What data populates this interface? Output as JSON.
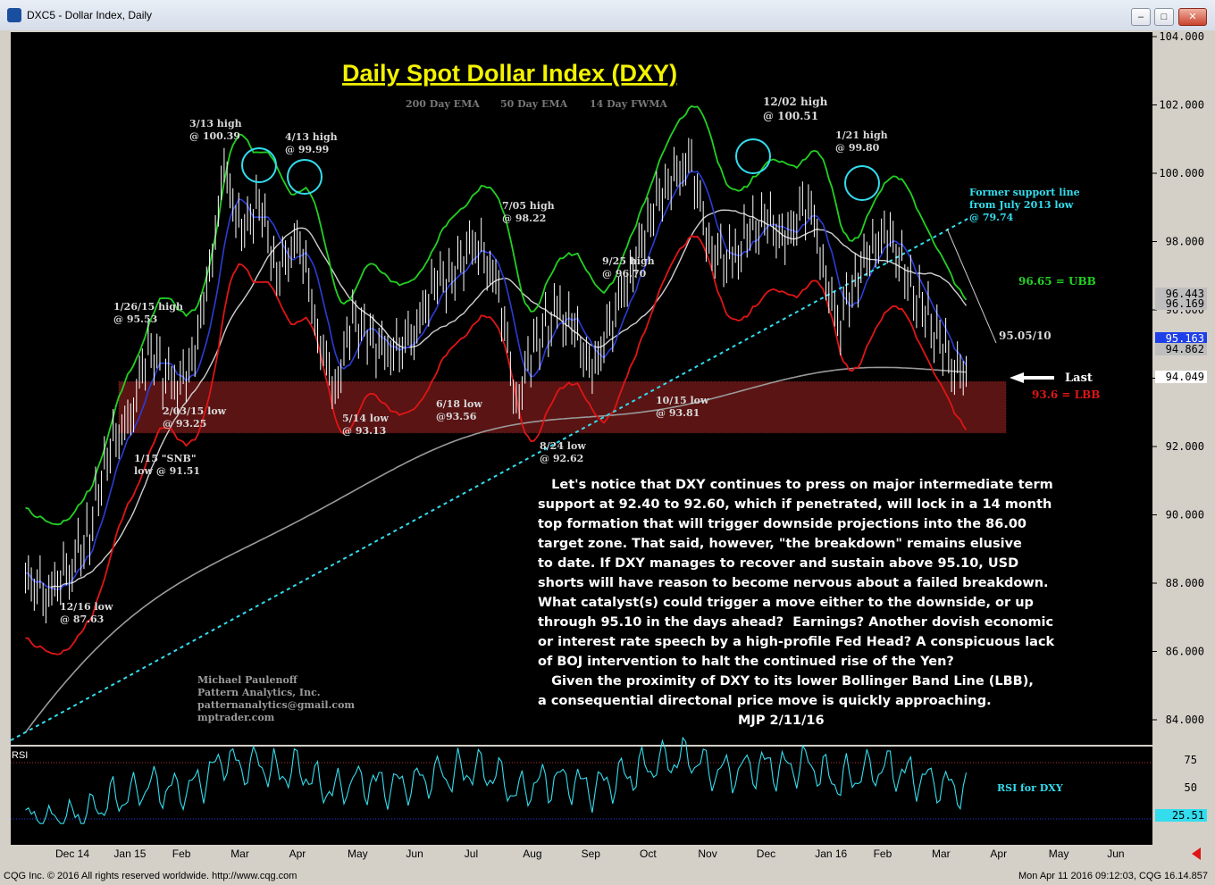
{
  "window": {
    "title": "DXC5 - Dollar Index, Daily",
    "status_left": "CQG Inc. © 2016 All rights reserved worldwide. http://www.cqg.com",
    "status_right": "Mon Apr 11 2016 09:12:03, CQG 16.14.857"
  },
  "chart_data": {
    "type": "line",
    "title": "Daily Spot Dollar Index (DXY)",
    "legend": [
      "200 Day EMA",
      "50 Day EMA",
      "14 Day FWMA"
    ],
    "ylim": [
      82.6,
      104.4
    ],
    "y_ticks": [
      "104.000",
      "102.000",
      "100.000",
      "98.000",
      "96.000",
      "94.000",
      "92.000",
      "90.000",
      "88.000",
      "86.000",
      "84.000"
    ],
    "x_labels": [
      "Dec 14",
      "Jan 15",
      "Feb",
      "Mar",
      "Apr",
      "May",
      "Jun",
      "Jul",
      "Aug",
      "Sep",
      "Oct",
      "Nov",
      "Dec",
      "Jan 16",
      "Feb",
      "Mar",
      "Apr",
      "May",
      "Jun"
    ],
    "price_series": {
      "name": "DXY",
      "x_month": [
        0.1,
        0.5,
        0.9,
        1.2,
        1.5,
        1.9,
        2.2,
        2.6,
        2.9,
        3.2,
        3.5,
        3.8,
        4.1,
        4.4,
        4.8,
        5.1,
        5.4,
        5.7,
        6.0,
        6.4,
        6.8,
        7.1,
        7.4,
        7.8,
        8.2,
        8.5,
        8.8,
        9.2,
        9.5,
        9.8,
        10.2,
        10.5,
        10.8,
        11.1,
        11.5,
        11.8,
        12.2,
        12.5,
        12.8,
        13.1,
        13.5,
        13.8,
        14.0,
        14.3,
        14.6,
        14.9,
        15.2,
        15.5,
        15.8,
        16.0,
        16.2
      ],
      "close": [
        88.1,
        87.7,
        88.6,
        89.5,
        91.9,
        92.8,
        95.0,
        93.7,
        94.1,
        96.5,
        100.1,
        98.2,
        99.2,
        97.1,
        98.1,
        95.3,
        93.6,
        95.8,
        95.1,
        94.7,
        95.5,
        96.8,
        97.0,
        98.1,
        96.6,
        93.2,
        95.0,
        95.9,
        95.4,
        94.1,
        96.1,
        97.2,
        98.8,
        99.8,
        100.3,
        97.8,
        97.4,
        98.3,
        98.6,
        98.0,
        99.3,
        96.9,
        95.5,
        96.9,
        97.9,
        98.2,
        96.8,
        95.9,
        94.9,
        94.3,
        94.05
      ]
    },
    "series_labels": [
      "200 Day EMA",
      "50 Day EMA",
      "14 Day FWMA",
      "Upper Bollinger Band",
      "Lower Bollinger Band"
    ],
    "annotations": {
      "title": "Daily Spot Dollar Index (DXY)",
      "legend_200": "200 Day EMA",
      "legend_50": "50 Day EMA",
      "legend_14": "14 Day FWMA",
      "h1_a": "3/13 high",
      "h1_b": "@ 100.39",
      "h2_a": "4/13 high",
      "h2_b": "@ 99.99",
      "h3_a": "12/02 high",
      "h3_b": "@ 100.51",
      "h4_a": "1/21 high",
      "h4_b": "@ 99.80",
      "h5_a": "7/05 high",
      "h5_b": "@ 98.22",
      "h6_a": "9/25 high",
      "h6_b": "@ 96.70",
      "h7_a": "1/26/15 high",
      "h7_b": "@ 95.53",
      "l1_a": "2/03/15 low",
      "l1_b": "@ 93.25",
      "l2_a": "1/15 \"SNB\"",
      "l2_b": "low @ 91.51",
      "l3_a": "5/14 low",
      "l3_b": "@ 93.13",
      "l4_a": "6/18 low",
      "l4_b": "@93.56",
      "l5_a": "8/24 low",
      "l5_b": "@ 92.62",
      "l6_a": "10/15 low",
      "l6_b": "@ 93.81",
      "l7_a": "12/16 low",
      "l7_b": "@ 87.63",
      "support_1": "Former support line",
      "support_2": "from July 2013 low",
      "support_3": "@ 79.74",
      "ubb": "96.65 = UBB",
      "lbb": "93.6 = LBB",
      "level_9510": "95.05/10",
      "last": "Last",
      "author_1": "Michael Paulenoff",
      "author_2": "Pattern Analytics, Inc.",
      "author_3": "patternanalytics@gmail.com",
      "author_4": "mptrader.com",
      "rsi_tag": "RSI",
      "rsi_label": "RSI for DXY"
    },
    "commentary": [
      "   Let's notice that DXY continues to press on major intermediate term",
      "support at 92.40 to 92.60, which if penetrated, will lock in a 14 month",
      "top formation that will trigger downside projections into the 86.00",
      "target zone. That said, however, \"the breakdown\" remains elusive",
      "to date. If DXY manages to recover and sustain above 95.10, USD",
      "shorts will have reason to become nervous about a failed breakdown.",
      "What catalyst(s) could trigger a move either to the downside, or up",
      "through 95.10 in the days ahead?  Earnings? Another dovish economic",
      "or interest rate speech by a high-profile Fed Head? A conspicuous lack",
      "of BOJ intervention to halt the continued rise of the Yen?",
      "   Given the proximity of DXY to its lower Bollinger Band Line (LBB),",
      "a consequential directonal price move is quickly approaching.",
      "MJP 2/11/16"
    ],
    "price_tags": [
      {
        "value": "96.443",
        "color": "#bebebe"
      },
      {
        "value": "96.169",
        "color": "#bebebe"
      },
      {
        "value": "95.163",
        "color": "#1f3fe8"
      },
      {
        "value": "94.862",
        "color": "#bebebe"
      },
      {
        "value": "94.049",
        "color": "#ffffff"
      }
    ],
    "rsi": {
      "ticks": [
        "75",
        "50"
      ],
      "value": "25.51"
    },
    "support_zone": [
      92.4,
      93.9
    ],
    "colors": {
      "background": "#000000",
      "price": "#ffffff",
      "ema200": "#9a9a9a",
      "ema50": "#cfcfcf",
      "fwma14": "#2a3dd6",
      "ubb": "#22d022",
      "lbb": "#e01515",
      "trendline": "#33ddee",
      "zone": "#8a1f1f",
      "title": "#f2f200"
    }
  }
}
